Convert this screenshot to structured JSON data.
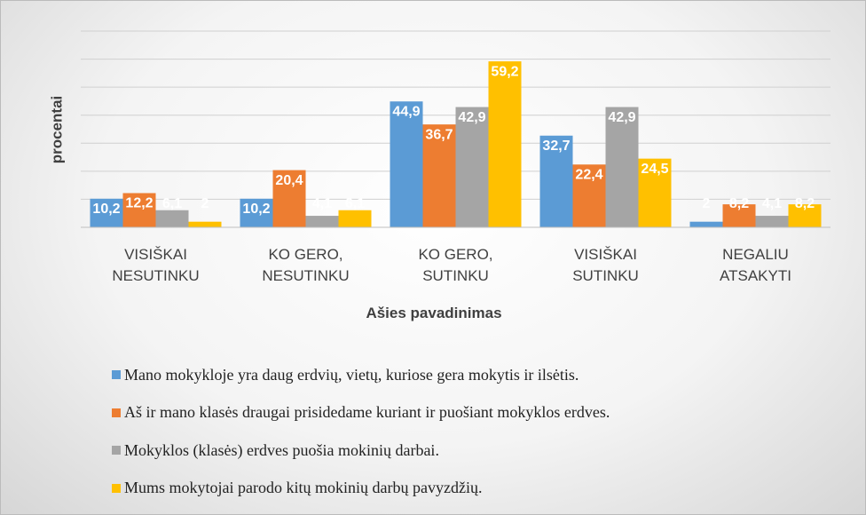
{
  "chart_data": {
    "type": "bar",
    "y_axis_label": "procentai",
    "x_axis_label": "Ašies pavadinimas",
    "categories": [
      "VISIŠKAI NESUTINKU",
      "KO GERO, NESUTINKU",
      "KO GERO, SUTINKU",
      "VISIŠKAI SUTINKU",
      "NEGALIU ATSAKYTI"
    ],
    "series": [
      {
        "name": "Mano mokykloje yra daug erdvių, vietų, kuriose gera mokytis ir ilsėtis.",
        "color": "#5b9bd5",
        "values": [
          10.2,
          10.2,
          44.9,
          32.7,
          2
        ],
        "value_labels": [
          "10,2",
          "10,2",
          "44,9",
          "32,7",
          "2"
        ]
      },
      {
        "name": "Aš ir mano klasės draugai prisidedame kuriant ir puošiant mokyklos erdves.",
        "color": "#ed7d31",
        "values": [
          12.2,
          20.4,
          36.7,
          22.4,
          8.2
        ],
        "value_labels": [
          "12,2",
          "20,4",
          "36,7",
          "22,4",
          "8,2"
        ]
      },
      {
        "name": "Mokyklos (klasės) erdves puošia mokinių darbai.",
        "color": "#a5a5a5",
        "values": [
          6.1,
          4.1,
          42.9,
          42.9,
          4.1
        ],
        "value_labels": [
          "6,1",
          "4,1",
          "42,9",
          "42,9",
          "4,1"
        ]
      },
      {
        "name": "Mums mokytojai parodo kitų mokinių darbų pavyzdžių.",
        "color": "#ffc000",
        "values": [
          2,
          6.1,
          59.2,
          24.5,
          8.2
        ],
        "value_labels": [
          "2",
          "6,1",
          "59,2",
          "24,5",
          "8,2"
        ]
      }
    ],
    "ylim": [
      0,
      70
    ],
    "yticks": [
      0,
      10,
      20,
      30,
      40,
      50,
      60,
      70
    ],
    "grid": true,
    "legend": "bottom"
  }
}
